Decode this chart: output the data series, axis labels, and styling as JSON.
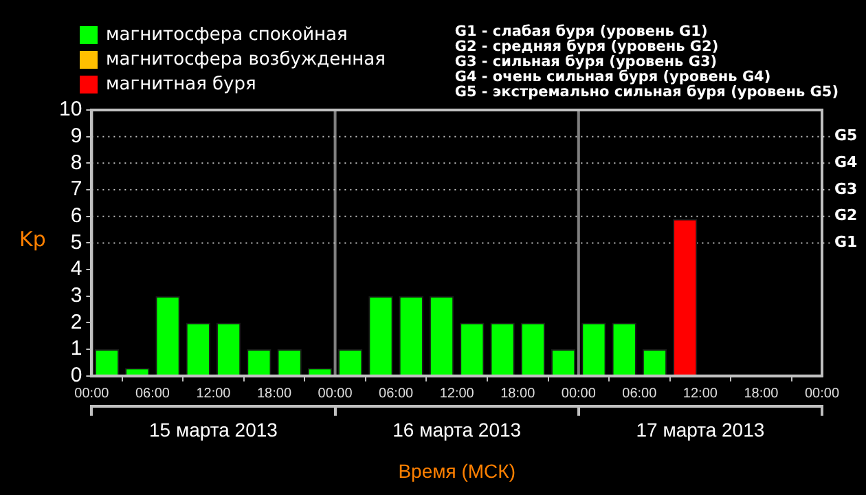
{
  "chart_data": {
    "type": "bar",
    "stacked": true,
    "xlabel": "Время (МСК)",
    "ylabel": "Kp",
    "x": [
      "2013-03-15T01:30",
      "2013-03-15T04:30",
      "2013-03-15T07:30",
      "2013-03-15T10:30",
      "2013-03-15T13:30",
      "2013-03-15T16:30",
      "2013-03-15T19:30",
      "2013-03-15T22:30",
      "2013-03-16T01:30",
      "2013-03-16T04:30",
      "2013-03-16T07:30",
      "2013-03-16T10:30",
      "2013-03-16T13:30",
      "2013-03-16T16:30",
      "2013-03-16T19:30",
      "2013-03-16T22:30",
      "2013-03-17T01:30",
      "2013-03-17T04:30",
      "2013-03-17T07:30",
      "2013-03-17T10:30"
    ],
    "series": [
      {
        "name": "магнитосфера спокойная",
        "color": "#00ff00",
        "values": [
          1,
          0.3,
          3,
          2,
          2,
          1,
          1,
          0.3,
          1,
          3,
          3,
          3,
          2,
          2,
          2,
          1,
          2,
          2,
          1,
          null
        ]
      },
      {
        "name": "магнитосфера возбужденная",
        "color": "#ffbf00",
        "values": [
          null,
          null,
          null,
          null,
          null,
          null,
          null,
          null,
          null,
          null,
          null,
          null,
          null,
          null,
          null,
          null,
          null,
          null,
          null,
          null
        ]
      },
      {
        "name": "магнитная буря",
        "color": "#ff0000",
        "values": [
          null,
          null,
          null,
          null,
          null,
          null,
          null,
          null,
          null,
          null,
          null,
          null,
          null,
          null,
          null,
          null,
          null,
          null,
          null,
          5.9
        ]
      }
    ],
    "xlim": [
      "2013-03-15T00:00",
      "2013-03-18T00:00"
    ],
    "xticks": [
      {
        "value": "2013-03-15T00:00",
        "label": "00:00"
      },
      {
        "value": "2013-03-15T06:00",
        "label": "06:00"
      },
      {
        "value": "2013-03-15T12:00",
        "label": "12:00"
      },
      {
        "value": "2013-03-15T18:00",
        "label": "18:00"
      },
      {
        "value": "2013-03-16T00:00",
        "label": "00:00"
      },
      {
        "value": "2013-03-16T06:00",
        "label": "06:00"
      },
      {
        "value": "2013-03-16T12:00",
        "label": "12:00"
      },
      {
        "value": "2013-03-16T18:00",
        "label": "18:00"
      },
      {
        "value": "2013-03-17T00:00",
        "label": "00:00"
      },
      {
        "value": "2013-03-17T06:00",
        "label": "06:00"
      },
      {
        "value": "2013-03-17T12:00",
        "label": "12:00"
      },
      {
        "value": "2013-03-17T18:00",
        "label": "18:00"
      },
      {
        "value": "2013-03-18T00:00",
        "label": "00:00"
      }
    ],
    "x2lim": [
      "2013-03-15T00:00",
      "2013-03-18T00:00"
    ],
    "x2ticks": [
      {
        "value": "2013-03-15T00:00",
        "label": null
      },
      {
        "value": "2013-03-15T12:00",
        "label": "15 марта 2013"
      },
      {
        "value": "2013-03-16T00:00",
        "label": null
      },
      {
        "value": "2013-03-16T12:00",
        "label": "16 марта 2013"
      },
      {
        "value": "2013-03-17T00:00",
        "label": null
      },
      {
        "value": "2013-03-17T12:00",
        "label": "17 марта 2013"
      },
      {
        "value": "2013-03-18T00:00",
        "label": null
      }
    ],
    "ylim": [
      0,
      10
    ],
    "yticks": [
      0,
      1,
      2,
      3,
      4,
      5,
      6,
      7,
      8,
      9,
      10
    ],
    "ref_lines": [
      {
        "axis": "x",
        "value": "2013-03-16T00:00",
        "color": "#808080"
      },
      {
        "axis": "x",
        "value": "2013-03-17T00:00",
        "color": "#808080"
      },
      {
        "axis": "y",
        "value": 5,
        "label": "G1",
        "color": "#c0c0c0",
        "line_style": "dotted"
      },
      {
        "axis": "y",
        "value": 6,
        "label": "G2",
        "color": "#c0c0c0",
        "line_style": "dotted"
      },
      {
        "axis": "y",
        "value": 7,
        "label": "G3",
        "color": "#c0c0c0",
        "line_style": "dotted"
      },
      {
        "axis": "y",
        "value": 8,
        "label": "G4",
        "color": "#c0c0c0",
        "line_style": "dotted"
      },
      {
        "axis": "y",
        "value": 9,
        "label": "G5",
        "color": "#c0c0c0",
        "line_style": "dotted"
      }
    ],
    "legend": "top left",
    "annotations": [
      "G1 - слабая буря (уровень G1)",
      "G2 - средняя буря (уровень G2)",
      "G3 - сильная буря (уровень G3)",
      "G4 - очень сильная буря (уровень G4)",
      "G5 - экстремально сильная буря (уровень G5)"
    ]
  }
}
